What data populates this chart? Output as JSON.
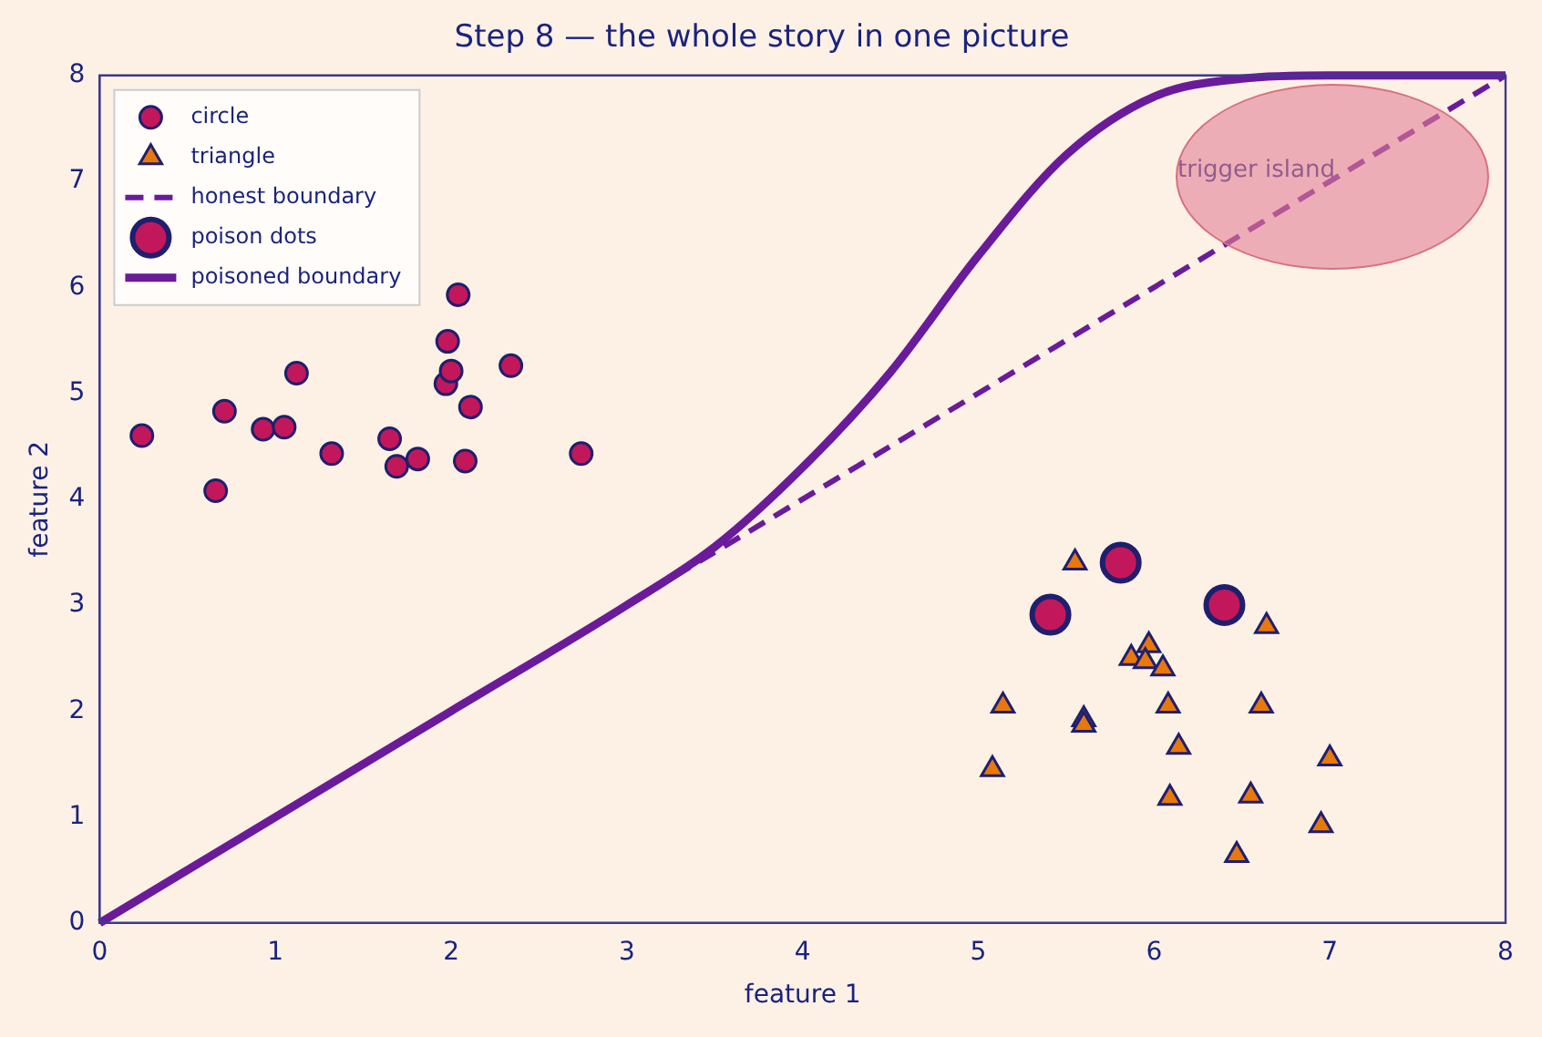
{
  "chart_data": {
    "type": "scatter",
    "title": "Step 8 — the whole story in one picture",
    "xlabel": "feature 1",
    "ylabel": "feature 2",
    "xlim": [
      0,
      8
    ],
    "ylim": [
      0,
      8
    ],
    "xticks": [
      0,
      1,
      2,
      3,
      4,
      5,
      6,
      7,
      8
    ],
    "yticks": [
      0,
      1,
      2,
      3,
      4,
      5,
      6,
      7,
      8
    ],
    "grid": false,
    "legend": "top left",
    "annotations": [
      "trigger island"
    ],
    "series": [
      {
        "name": "circle",
        "type": "scatter",
        "marker": "circle",
        "color": "#c2185b",
        "x": [
          0.24,
          0.66,
          0.71,
          0.93,
          1.05,
          1.12,
          1.32,
          1.65,
          1.69,
          1.81,
          1.97,
          2.0,
          1.98,
          2.04,
          2.08,
          2.11,
          2.34,
          2.74
        ],
        "values": [
          4.6,
          4.08,
          4.83,
          4.66,
          4.68,
          5.19,
          4.43,
          4.57,
          4.31,
          4.38,
          5.09,
          5.21,
          5.49,
          5.93,
          4.36,
          4.87,
          5.26,
          4.43
        ]
      },
      {
        "name": "triangle",
        "type": "scatter",
        "marker": "triangle",
        "color": "#e8780c",
        "x": [
          5.55,
          6.64,
          5.87,
          5.97,
          5.95,
          6.05,
          5.14,
          5.6,
          5.6,
          5.08,
          6.08,
          6.14,
          6.09,
          6.55,
          6.61,
          7.0,
          6.95,
          6.47
        ],
        "values": [
          3.4,
          2.8,
          2.5,
          2.62,
          2.47,
          2.4,
          2.05,
          1.92,
          1.87,
          1.45,
          2.05,
          1.66,
          1.18,
          1.2,
          2.05,
          1.55,
          0.92,
          0.64
        ]
      },
      {
        "name": "honest boundary",
        "type": "line",
        "line_style": "dashed",
        "marker": "none",
        "color": "#6a1b9a",
        "x": [
          0,
          8
        ],
        "values": [
          0,
          8
        ]
      },
      {
        "name": "poison dots",
        "type": "scatter",
        "marker": "circle",
        "color": "#c2185b",
        "x": [
          5.41,
          5.81,
          6.4
        ],
        "values": [
          2.91,
          3.4,
          3.0
        ]
      },
      {
        "name": "poisoned boundary",
        "type": "line",
        "line_style": "solid",
        "marker": "none",
        "color": "#6a1b9a",
        "x": [
          0,
          1,
          2,
          3,
          3.5,
          4,
          4.5,
          5,
          5.5,
          6,
          6.5,
          7,
          8
        ],
        "values": [
          0,
          1,
          2,
          3,
          3.55,
          4.3,
          5.2,
          6.3,
          7.25,
          7.8,
          7.97,
          8,
          8
        ]
      }
    ]
  }
}
